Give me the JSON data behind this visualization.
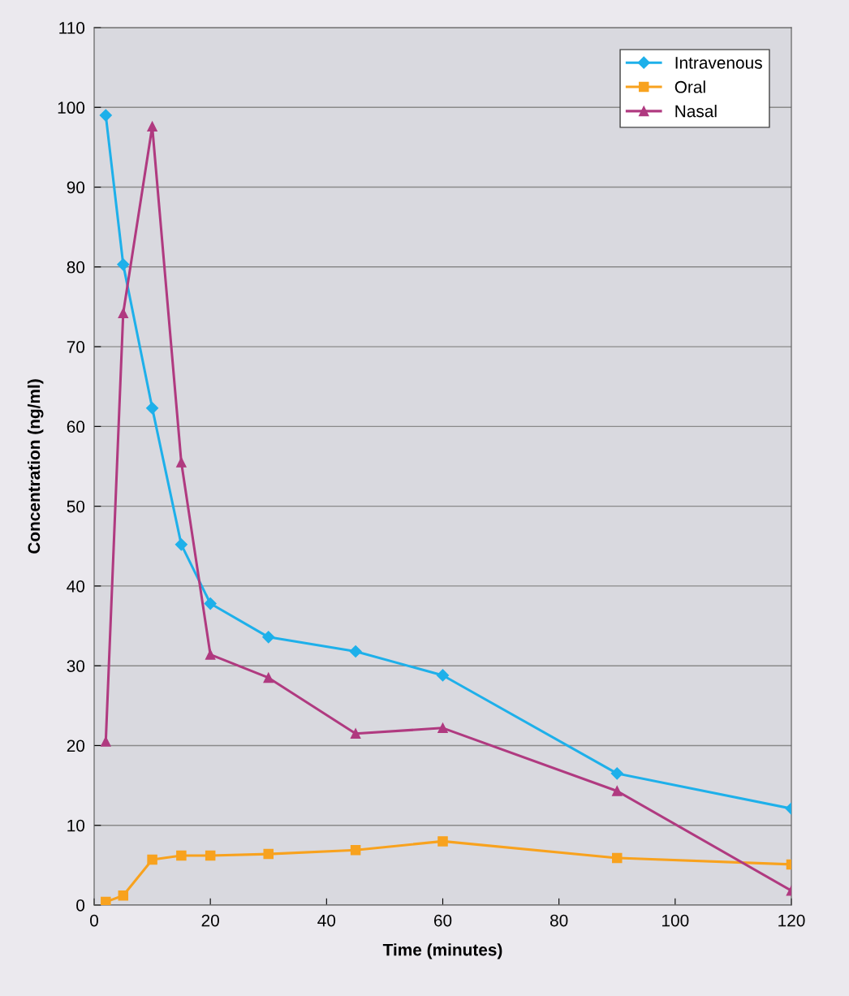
{
  "chart_data": {
    "type": "line",
    "xlabel": "Time (minutes)",
    "ylabel": "Concentration (ng/ml)",
    "x": [
      2,
      5,
      10,
      15,
      20,
      30,
      45,
      60,
      90,
      120
    ],
    "series": [
      {
        "name": "Intravenous",
        "color": "#1eb0ea",
        "marker": "diamond",
        "values": [
          99,
          80.3,
          62.3,
          45.2,
          37.8,
          33.6,
          31.8,
          28.8,
          16.5,
          12.1
        ]
      },
      {
        "name": "Oral",
        "color": "#f8a21e",
        "marker": "square",
        "values": [
          0.4,
          1.2,
          5.7,
          6.2,
          6.2,
          6.4,
          6.9,
          8.0,
          5.9,
          5.1
        ]
      },
      {
        "name": "Nasal",
        "color": "#b03a80",
        "marker": "triangle",
        "values": [
          20.5,
          74.2,
          97.6,
          55.5,
          31.4,
          28.5,
          21.5,
          22.2,
          14.3,
          1.8
        ]
      }
    ],
    "xlim": [
      0,
      120
    ],
    "xticks": [
      0,
      20,
      40,
      60,
      80,
      100,
      120
    ],
    "ylim": [
      0,
      110
    ],
    "yticks": [
      0,
      10,
      20,
      30,
      40,
      50,
      60,
      70,
      80,
      90,
      100,
      110
    ],
    "grid": "y",
    "legend": "top right",
    "line_style": "solid"
  }
}
